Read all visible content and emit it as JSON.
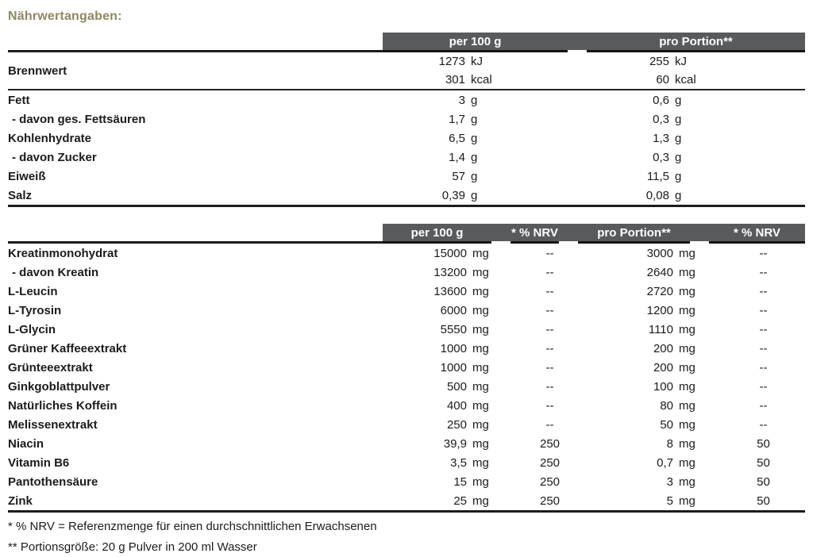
{
  "title": "Nährwertangaben:",
  "colors": {
    "accent": "#8e8862",
    "header_bg": "#595a5c",
    "text": "#1b1b1b"
  },
  "table1": {
    "headers": [
      "per 100 g",
      "pro Portion**"
    ],
    "energy": {
      "label": "Brennwert",
      "per100": [
        {
          "num": "1273",
          "unit": "kJ"
        },
        {
          "num": "301",
          "unit": "kcal"
        }
      ],
      "portion": [
        {
          "num": "255",
          "unit": "kJ"
        },
        {
          "num": "60",
          "unit": "kcal"
        }
      ]
    },
    "rows": [
      {
        "label": "Fett",
        "per100": {
          "num": "3",
          "unit": "g"
        },
        "portion": {
          "num": "0,6",
          "unit": "g"
        }
      },
      {
        "label": "- davon ges. Fettsäuren",
        "per100": {
          "num": "1,7",
          "unit": "g"
        },
        "portion": {
          "num": "0,3",
          "unit": "g"
        }
      },
      {
        "label": "Kohlenhydrate",
        "per100": {
          "num": "6,5",
          "unit": "g"
        },
        "portion": {
          "num": "1,3",
          "unit": "g"
        }
      },
      {
        "label": "- davon Zucker",
        "per100": {
          "num": "1,4",
          "unit": "g"
        },
        "portion": {
          "num": "0,3",
          "unit": "g"
        }
      },
      {
        "label": "Eiweiß",
        "per100": {
          "num": "57",
          "unit": "g"
        },
        "portion": {
          "num": "11,5",
          "unit": "g"
        }
      },
      {
        "label": "Salz",
        "per100": {
          "num": "0,39",
          "unit": "g"
        },
        "portion": {
          "num": "0,08",
          "unit": "g"
        }
      }
    ]
  },
  "table2": {
    "headers": [
      "per 100 g",
      "* % NRV",
      "pro Portion**",
      "* % NRV"
    ],
    "rows": [
      {
        "label": "Kreatinmonohydrat",
        "per100": {
          "num": "15000",
          "unit": "mg"
        },
        "nrv100": "--",
        "portion": {
          "num": "3000",
          "unit": "mg"
        },
        "nrvPortion": "--"
      },
      {
        "label": "- davon Kreatin",
        "per100": {
          "num": "13200",
          "unit": "mg"
        },
        "nrv100": "--",
        "portion": {
          "num": "2640",
          "unit": "mg"
        },
        "nrvPortion": "--"
      },
      {
        "label": "L-Leucin",
        "per100": {
          "num": "13600",
          "unit": "mg"
        },
        "nrv100": "--",
        "portion": {
          "num": "2720",
          "unit": "mg"
        },
        "nrvPortion": "--"
      },
      {
        "label": "L-Tyrosin",
        "per100": {
          "num": "6000",
          "unit": "mg"
        },
        "nrv100": "--",
        "portion": {
          "num": "1200",
          "unit": "mg"
        },
        "nrvPortion": "--"
      },
      {
        "label": "L-Glycin",
        "per100": {
          "num": "5550",
          "unit": "mg"
        },
        "nrv100": "--",
        "portion": {
          "num": "1110",
          "unit": "mg"
        },
        "nrvPortion": "--"
      },
      {
        "label": "Grüner Kaffeeextrakt",
        "per100": {
          "num": "1000",
          "unit": "mg"
        },
        "nrv100": "--",
        "portion": {
          "num": "200",
          "unit": "mg"
        },
        "nrvPortion": "--"
      },
      {
        "label": "Grünteeextrakt",
        "per100": {
          "num": "1000",
          "unit": "mg"
        },
        "nrv100": "--",
        "portion": {
          "num": "200",
          "unit": "mg"
        },
        "nrvPortion": "--"
      },
      {
        "label": "Ginkgoblattpulver",
        "per100": {
          "num": "500",
          "unit": "mg"
        },
        "nrv100": "--",
        "portion": {
          "num": "100",
          "unit": "mg"
        },
        "nrvPortion": "--"
      },
      {
        "label": "Natürliches Koffein",
        "per100": {
          "num": "400",
          "unit": "mg"
        },
        "nrv100": "--",
        "portion": {
          "num": "80",
          "unit": "mg"
        },
        "nrvPortion": "--"
      },
      {
        "label": "Melissenextrakt",
        "per100": {
          "num": "250",
          "unit": "mg"
        },
        "nrv100": "--",
        "portion": {
          "num": "50",
          "unit": "mg"
        },
        "nrvPortion": "--"
      },
      {
        "label": "Niacin",
        "per100": {
          "num": "39,9",
          "unit": "mg"
        },
        "nrv100": "250",
        "portion": {
          "num": "8",
          "unit": "mg"
        },
        "nrvPortion": "50"
      },
      {
        "label": "Vitamin B6",
        "per100": {
          "num": "3,5",
          "unit": "mg"
        },
        "nrv100": "250",
        "portion": {
          "num": "0,7",
          "unit": "mg"
        },
        "nrvPortion": "50"
      },
      {
        "label": "Pantothensäure",
        "per100": {
          "num": "15",
          "unit": "mg"
        },
        "nrv100": "250",
        "portion": {
          "num": "3",
          "unit": "mg"
        },
        "nrvPortion": "50"
      },
      {
        "label": "Zink",
        "per100": {
          "num": "25",
          "unit": "mg"
        },
        "nrv100": "250",
        "portion": {
          "num": "5",
          "unit": "mg"
        },
        "nrvPortion": "50"
      }
    ]
  },
  "footnotes": [
    "* % NRV = Referenzmenge für einen durchschnittlichen Erwachsenen",
    "** Portionsgröße: 20 g Pulver in 200 ml Wasser"
  ]
}
